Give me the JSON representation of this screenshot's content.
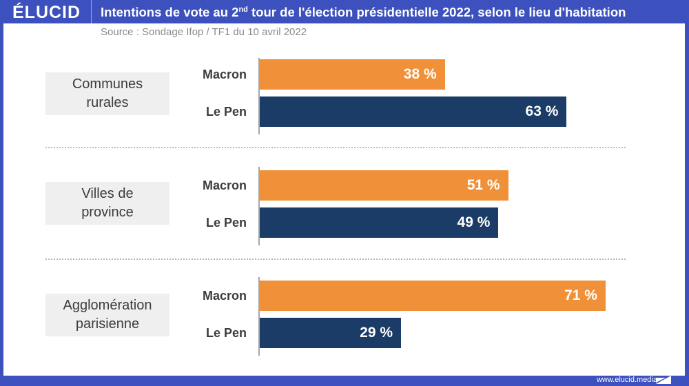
{
  "header": {
    "logo": "ÉLUCID",
    "title_before_sup": "Intentions de vote au 2",
    "title_sup": "nd",
    "title_after_sup": " tour de l'élection présidentielle 2022, selon le lieu d'habitation"
  },
  "source": "Source : Sondage Ifop / TF1 du 10 avril 2022",
  "footer": {
    "website": "www.elucid.media"
  },
  "colors": {
    "frame": "#3c50be",
    "macron": "#f0913a",
    "le_pen": "#1b3c66",
    "category_box": "#efefef"
  },
  "chart_data": {
    "type": "bar",
    "orientation": "horizontal",
    "title": "Intentions de vote au 2nd tour de l'élection présidentielle 2022, selon le lieu d'habitation",
    "subtitle": "Source : Sondage Ifop / TF1 du 10 avril 2022",
    "unit": "%",
    "xlim": [
      0,
      100
    ],
    "grid": false,
    "groups": [
      {
        "category": "Communes rurales",
        "bars": [
          {
            "name": "Macron",
            "value": 38,
            "label": "38 %"
          },
          {
            "name": "Le Pen",
            "value": 63,
            "label": "63 %"
          }
        ]
      },
      {
        "category": "Villes de province",
        "bars": [
          {
            "name": "Macron",
            "value": 51,
            "label": "51 %"
          },
          {
            "name": "Le Pen",
            "value": 49,
            "label": "49 %"
          }
        ]
      },
      {
        "category": "Agglomération parisienne",
        "bars": [
          {
            "name": "Macron",
            "value": 71,
            "label": "71 %"
          },
          {
            "name": "Le Pen",
            "value": 29,
            "label": "29 %"
          }
        ]
      }
    ],
    "series": [
      {
        "name": "Macron",
        "values": [
          38,
          51,
          71
        ]
      },
      {
        "name": "Le Pen",
        "values": [
          63,
          49,
          29
        ]
      }
    ],
    "categories": [
      "Communes rurales",
      "Villes de province",
      "Agglomération parisienne"
    ],
    "category_lines": [
      [
        "Communes",
        "rurales"
      ],
      [
        "Villes de",
        "province"
      ],
      [
        "Agglomération",
        "parisienne"
      ]
    ]
  }
}
